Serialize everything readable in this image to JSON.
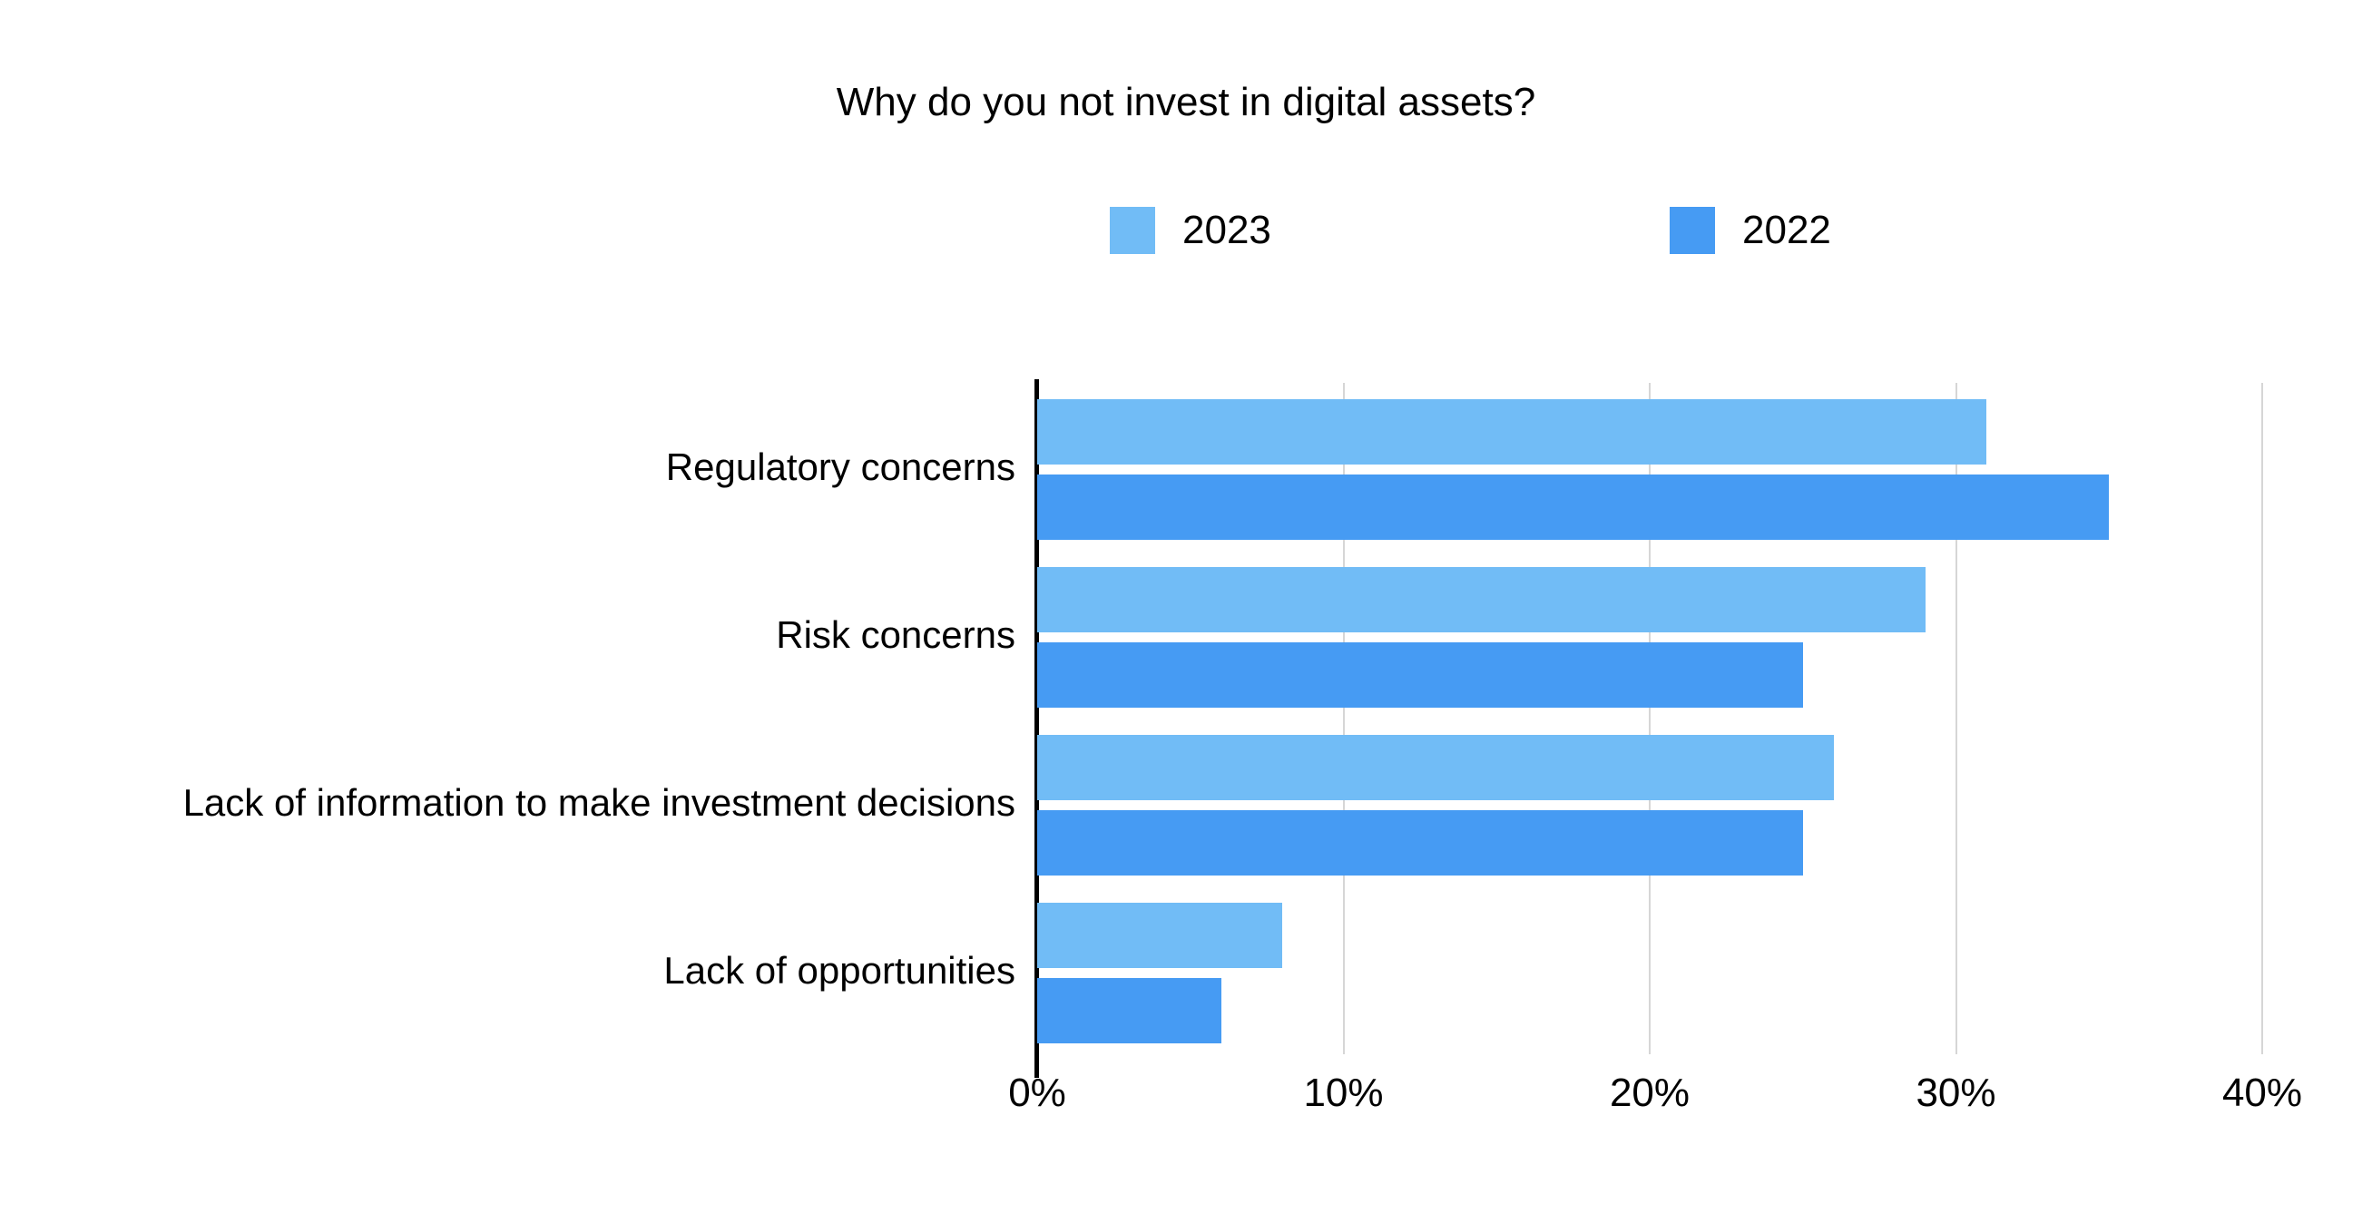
{
  "chart_data": {
    "type": "bar",
    "orientation": "horizontal",
    "title": "Why do you not invest in digital assets?",
    "categories": [
      "Regulatory concerns",
      "Risk concerns",
      "Lack of information to make investment decisions",
      "Lack of opportunities"
    ],
    "series": [
      {
        "name": "2023",
        "color": "#71BCF6",
        "values": [
          31,
          29,
          26,
          8
        ]
      },
      {
        "name": "2022",
        "color": "#469BF3",
        "values": [
          35,
          25,
          25,
          6
        ]
      }
    ],
    "x_ticks": [
      "0%",
      "10%",
      "20%",
      "30%",
      "40%"
    ],
    "xlim": [
      0,
      40
    ],
    "legend_position": "top",
    "grid": "vertical-only",
    "colors": {
      "grid": "#d6d6d6",
      "axis": "#000000",
      "text": "#000000",
      "background": "#ffffff"
    }
  }
}
